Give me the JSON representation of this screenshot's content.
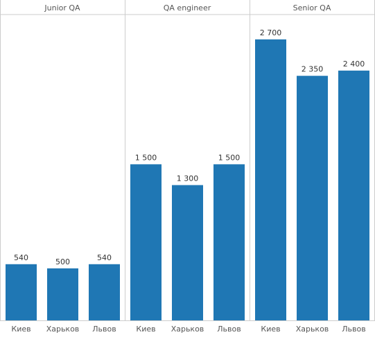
{
  "chart_data": {
    "type": "bar",
    "categories": [
      "Киев",
      "Харьков",
      "Львов"
    ],
    "panels": [
      {
        "title": "Junior QA",
        "values": [
          540,
          500,
          540
        ],
        "value_labels": [
          "540",
          "500",
          "540"
        ]
      },
      {
        "title": "QA engineer",
        "values": [
          1500,
          1300,
          1500
        ],
        "value_labels": [
          "1 500",
          "1 300",
          "1 500"
        ]
      },
      {
        "title": "Senior QA",
        "values": [
          2700,
          2350,
          2400
        ],
        "value_labels": [
          "2 700",
          "2 350",
          "2 400"
        ]
      }
    ],
    "ylim": [
      0,
      3000
    ],
    "grid": false,
    "legend": "none",
    "bar_color": "#1f77b4",
    "divider_color": "#cccccc",
    "text_color": "#555555"
  }
}
